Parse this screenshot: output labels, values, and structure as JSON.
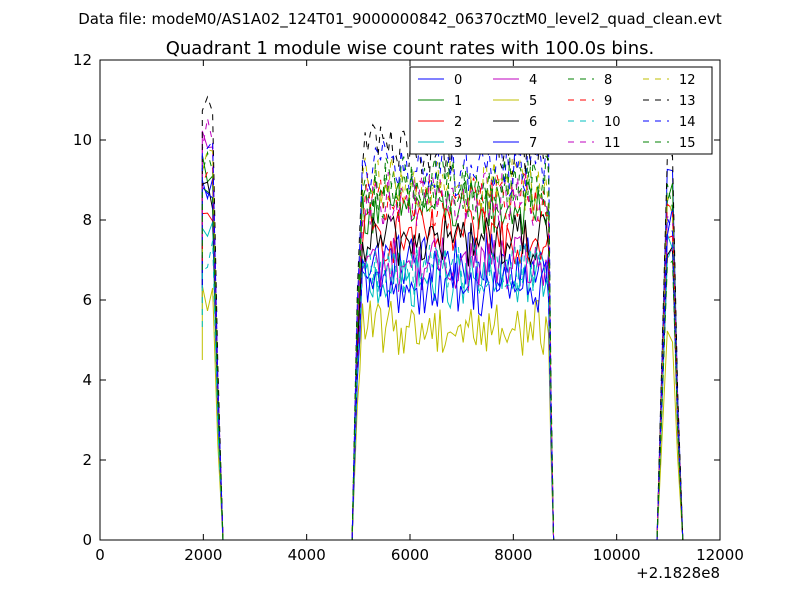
{
  "suptitle": "Data file: modeM0/AS1A02_124T01_9000000842_06370cztM0_level2_quad_clean.evt",
  "chart_data": {
    "type": "line",
    "title": "Quadrant 1 module wise count rates with 100.0s bins.",
    "xlabel": "",
    "ylabel": "",
    "x_offset_label": "+2.1828e8",
    "xlim": [
      0,
      12000
    ],
    "ylim": [
      0,
      12
    ],
    "x_ticks": [
      0,
      2000,
      4000,
      6000,
      8000,
      10000,
      12000
    ],
    "x_tick_labels": [
      "0",
      "2000",
      "4000",
      "6000",
      "8000",
      "10000",
      "12000"
    ],
    "y_ticks": [
      0,
      2,
      4,
      6,
      8,
      10,
      12
    ],
    "y_tick_labels": [
      "0",
      "2",
      "4",
      "6",
      "8",
      "10",
      "12"
    ],
    "grid": false,
    "legend_position": "top-right",
    "legend_columns": 4,
    "segments": [
      {
        "start": 1980,
        "end": 2380,
        "step": 100
      },
      {
        "start": 4880,
        "end": 8780,
        "step": 50
      },
      {
        "start": 10780,
        "end": 11280,
        "step": 100
      }
    ],
    "gap_value": 0,
    "series": [
      {
        "name": "0",
        "color": "#0000ff",
        "dash": "solid",
        "levels": [
          8.8,
          7.0,
          9.1
        ]
      },
      {
        "name": "1",
        "color": "#008000",
        "dash": "solid",
        "levels": [
          9.4,
          8.3,
          8.5
        ]
      },
      {
        "name": "2",
        "color": "#ff0000",
        "dash": "solid",
        "levels": [
          7.9,
          7.6,
          7.8
        ]
      },
      {
        "name": "3",
        "color": "#00bfbf",
        "dash": "solid",
        "levels": [
          7.5,
          6.5,
          7.2
        ]
      },
      {
        "name": "4",
        "color": "#bf00bf",
        "dash": "solid",
        "levels": [
          9.9,
          6.9,
          6.9
        ]
      },
      {
        "name": "5",
        "color": "#bfbf00",
        "dash": "solid",
        "levels": [
          6.0,
          5.3,
          5.2
        ]
      },
      {
        "name": "6",
        "color": "#000000",
        "dash": "solid",
        "levels": [
          8.5,
          7.5,
          7.3
        ]
      },
      {
        "name": "7",
        "color": "#0000ff",
        "dash": "solid",
        "levels": [
          8.4,
          6.3,
          8.0
        ]
      },
      {
        "name": "8",
        "color": "#008000",
        "dash": "dashed",
        "levels": [
          9.6,
          8.7,
          8.6
        ]
      },
      {
        "name": "9",
        "color": "#ff0000",
        "dash": "dashed",
        "levels": [
          9.3,
          8.5,
          8.3
        ]
      },
      {
        "name": "10",
        "color": "#00bfbf",
        "dash": "dashed",
        "levels": [
          7.1,
          6.8,
          7.1
        ]
      },
      {
        "name": "11",
        "color": "#bf00bf",
        "dash": "dashed",
        "levels": [
          10.1,
          8.5,
          8.4
        ]
      },
      {
        "name": "12",
        "color": "#bfbf00",
        "dash": "dashed",
        "levels": [
          9.5,
          8.9,
          8.2
        ]
      },
      {
        "name": "13",
        "color": "#000000",
        "dash": "dashed",
        "levels": [
          11.0,
          9.8,
          9.4
        ]
      },
      {
        "name": "14",
        "color": "#0000ff",
        "dash": "dashed",
        "levels": [
          9.9,
          9.3,
          8.1
        ]
      },
      {
        "name": "15",
        "color": "#008000",
        "dash": "dashed",
        "levels": [
          9.0,
          8.9,
          7.1
        ]
      }
    ]
  }
}
